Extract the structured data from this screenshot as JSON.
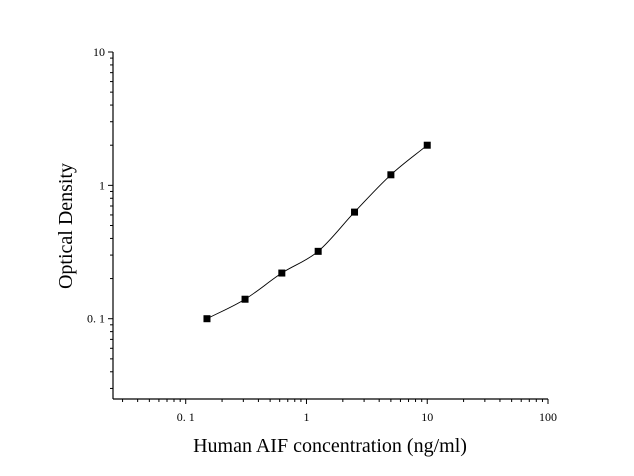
{
  "chart_data": {
    "type": "scatter",
    "xlabel": "Human AIF concentration (ng/ml)",
    "ylabel": "Optical Density",
    "x_scale": "log",
    "y_scale": "log",
    "xlim": [
      0.025,
      100
    ],
    "ylim": [
      0.025,
      10
    ],
    "x_tick_values": [
      0.1,
      1,
      10,
      100
    ],
    "x_tick_labels": [
      "0. 1",
      "1",
      "10",
      "100"
    ],
    "y_tick_values": [
      0.1,
      1,
      10
    ],
    "y_tick_labels": [
      "0. 1",
      "1",
      "10"
    ],
    "grid": false,
    "series": [
      {
        "points": [
          {
            "x": 0.15,
            "y": 0.1
          },
          {
            "x": 0.31,
            "y": 0.14
          },
          {
            "x": 0.625,
            "y": 0.22
          },
          {
            "x": 1.25,
            "y": 0.32
          },
          {
            "x": 2.5,
            "y": 0.63
          },
          {
            "x": 5,
            "y": 1.2
          },
          {
            "x": 10,
            "y": 2.0
          }
        ],
        "marker": "square",
        "fit_line": true
      }
    ]
  }
}
